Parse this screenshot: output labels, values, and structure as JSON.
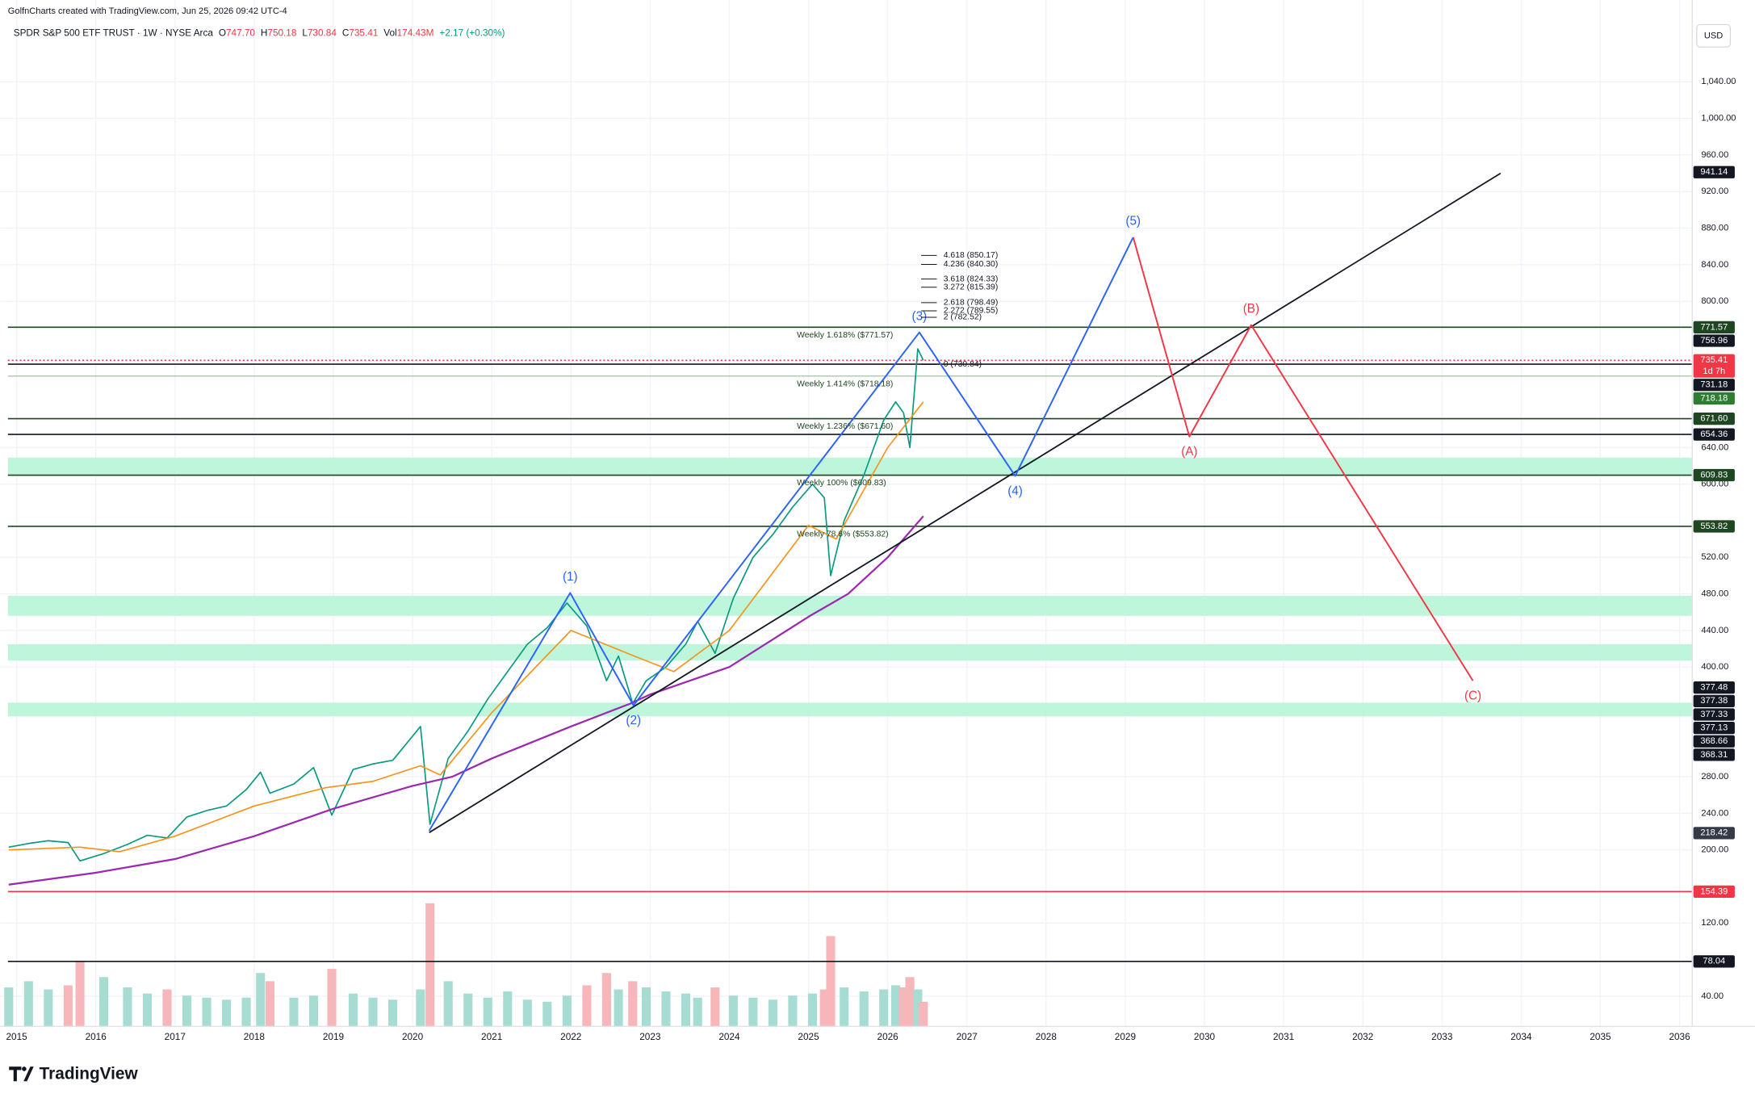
{
  "chart_data": {
    "type": "line",
    "caption": "GolfnCharts created with TradingView.com, Jun 25, 2026 09:42 UTC-4",
    "symbol": "SPDR S&P 500 ETF TRUST · 1W · NYSE Arca",
    "quote": [
      {
        "key": "O",
        "value": "747.70"
      },
      {
        "key": "H",
        "value": "750.18"
      },
      {
        "key": "L",
        "value": "730.84"
      },
      {
        "key": "C",
        "value": "735.41"
      },
      {
        "key": "Vol",
        "value": "174.43M"
      }
    ],
    "change": "+2.17 (+0.30%)",
    "currency": "USD",
    "watermark": "TradingView",
    "xlim": [
      2014.89,
      2036.16
    ],
    "xticks": [
      2015,
      2016,
      2017,
      2018,
      2019,
      2020,
      2021,
      2022,
      2023,
      2024,
      2025,
      2026,
      2027,
      2028,
      2029,
      2030,
      2031,
      2032,
      2033,
      2034,
      2035,
      2036
    ],
    "ylim": [
      7,
      1105
    ],
    "yticks": [
      {
        "value": 40,
        "label": "40.00"
      },
      {
        "value": 120,
        "label": "120.00"
      },
      {
        "value": 200,
        "label": "200.00"
      },
      {
        "value": 240,
        "label": "240.00"
      },
      {
        "value": 280,
        "label": "280.00"
      },
      {
        "value": 400,
        "label": "400.00"
      },
      {
        "value": 440,
        "label": "440.00"
      },
      {
        "value": 480,
        "label": "480.00"
      },
      {
        "value": 520,
        "label": "520.00"
      },
      {
        "value": 600,
        "label": "600.00"
      },
      {
        "value": 640,
        "label": "640.00"
      },
      {
        "value": 800,
        "label": "800.00"
      },
      {
        "value": 840,
        "label": "840.00"
      },
      {
        "value": 880,
        "label": "880.00"
      },
      {
        "value": 920,
        "label": "920.00"
      },
      {
        "value": 960,
        "label": "960.00"
      },
      {
        "value": 1000,
        "label": "1,000.00"
      },
      {
        "value": 1040,
        "label": "1,040.00"
      }
    ],
    "grid": true,
    "zones": [
      {
        "low": 609,
        "high": 629,
        "color": "#b7f5d8"
      },
      {
        "low": 456,
        "high": 478,
        "color": "#b7f5d8"
      },
      {
        "low": 407,
        "high": 425,
        "color": "#b7f5d8"
      },
      {
        "low": 346,
        "high": 361,
        "color": "#b7f5d8"
      }
    ],
    "series": [
      {
        "color": "#089981",
        "width": 1.2,
        "x": [
          2014.9,
          2015.15,
          2015.4,
          2015.65,
          2015.8,
          2016.1,
          2016.4,
          2016.65,
          2016.9,
          2017.15,
          2017.4,
          2017.65,
          2017.9,
          2018.08,
          2018.2,
          2018.5,
          2018.75,
          2018.98,
          2019.25,
          2019.5,
          2019.75,
          2020.1,
          2020.22,
          2020.45,
          2020.7,
          2020.95,
          2021.2,
          2021.45,
          2021.7,
          2021.95,
          2022.2,
          2022.45,
          2022.6,
          2022.78,
          2022.95,
          2023.2,
          2023.45,
          2023.6,
          2023.82,
          2024.05,
          2024.3,
          2024.55,
          2024.8,
          2025.05,
          2025.2,
          2025.28,
          2025.45,
          2025.7,
          2025.95,
          2026.1,
          2026.2,
          2026.28,
          2026.38,
          2026.45
        ],
        "values": [
          203,
          207,
          210,
          208,
          188,
          196,
          206,
          216,
          213,
          236,
          243,
          248,
          266,
          285,
          262,
          272,
          290,
          238,
          288,
          294,
          298,
          335,
          228,
          300,
          330,
          365,
          395,
          425,
          443,
          470,
          445,
          385,
          412,
          360,
          385,
          400,
          425,
          450,
          415,
          475,
          520,
          545,
          575,
          600,
          585,
          500,
          560,
          610,
          670,
          690,
          678,
          640,
          748,
          735.41
        ],
        "volume": [
          95,
          110,
          90,
          100,
          160,
          120,
          95,
          80,
          90,
          75,
          70,
          65,
          70,
          130,
          110,
          70,
          75,
          140,
          80,
          70,
          65,
          90,
          300,
          110,
          80,
          70,
          85,
          65,
          60,
          75,
          100,
          130,
          90,
          110,
          95,
          85,
          80,
          70,
          95,
          75,
          70,
          65,
          75,
          80,
          90,
          220,
          95,
          85,
          90,
          100,
          95,
          120,
          90,
          60
        ]
      },
      {
        "color": "#f7931a",
        "width": 1.2,
        "x": [
          2014.9,
          2015.8,
          2016.3,
          2017,
          2018,
          2018.9,
          2019.5,
          2020.1,
          2020.35,
          2021,
          2022,
          2022.8,
          2023.3,
          2024,
          2025,
          2025.35,
          2026,
          2026.45
        ],
        "values": [
          200,
          203,
          198,
          215,
          248,
          268,
          275,
          292,
          282,
          350,
          440,
          412,
          395,
          440,
          555,
          540,
          640,
          690
        ]
      },
      {
        "color": "#9c27b0",
        "width": 1.6,
        "x": [
          2014.9,
          2016,
          2017,
          2018,
          2019,
          2020,
          2020.5,
          2021,
          2022,
          2022.75,
          2023,
          2024,
          2025,
          2025.5,
          2026,
          2026.45
        ],
        "values": [
          162,
          175,
          190,
          215,
          245,
          270,
          280,
          300,
          335,
          360,
          370,
          400,
          455,
          480,
          520,
          565
        ]
      },
      {
        "color": "#131722",
        "width": 1.3,
        "x": [
          2020.21,
          2033.74
        ],
        "values": [
          219,
          940
        ]
      },
      {
        "color": "#2962ff",
        "width": 1.4,
        "x": [
          2020.21,
          2021.99,
          2022.79,
          2026.4,
          2027.61,
          2029.1
        ],
        "values": [
          221,
          481,
          358,
          766,
          609,
          870
        ],
        "labels": [
          null,
          "(1)",
          "(2)",
          "(3)",
          "(4)",
          "(5)"
        ]
      },
      {
        "color": "#f23645",
        "width": 1.4,
        "x": [
          2029.1,
          2029.81,
          2030.59,
          2033.39
        ],
        "values": [
          870,
          652,
          774,
          385
        ],
        "labels": [
          null,
          "(A)",
          "(B)",
          "(C)"
        ]
      }
    ],
    "fib_levels": [
      {
        "label": "4.618 (850.17)",
        "value": 850.17
      },
      {
        "label": "4.236 (840.30)",
        "value": 840.3
      },
      {
        "label": "3.618 (824.33)",
        "value": 824.33
      },
      {
        "label": "3.272 (815.39)",
        "value": 815.39
      },
      {
        "label": "2.618 (798.49)",
        "value": 798.49
      },
      {
        "label": "2.272 (789.55)",
        "value": 789.55
      },
      {
        "label": "2 (782.52)",
        "value": 782.52
      },
      {
        "label": "0 (730.84)",
        "value": 730.84
      }
    ],
    "weekly_levels": [
      {
        "label": "Weekly 1.618% ($771.57)",
        "value": 771.57
      },
      {
        "label": "Weekly 1.414% ($718.18)",
        "value": 718.18
      },
      {
        "label": "Weekly 1.236% ($671.60)",
        "value": 671.6
      },
      {
        "label": "Weekly 100% ($609.83)",
        "value": 609.83
      },
      {
        "label": "Weekly 78.6% ($553.82)",
        "value": 553.82
      }
    ],
    "price_labels": [
      {
        "value": 941.14,
        "label": "941.14",
        "color": "#131722"
      },
      {
        "value": 771.57,
        "label": "771.57",
        "color": "#1e4620",
        "line": "solid"
      },
      {
        "value": 756.96,
        "label": "756.96",
        "color": "#131722"
      },
      {
        "value": 735.41,
        "label": "735.41",
        "sub": "1d 7h",
        "color": "#f23645",
        "line": "dotted"
      },
      {
        "value": 731.18,
        "label": "731.18",
        "color": "#131722",
        "line": "solid"
      },
      {
        "value": 718.18,
        "label": "718.18",
        "color": "#2e7d32",
        "line": "light"
      },
      {
        "value": 671.6,
        "label": "671.60",
        "color": "#1e4620",
        "line": "solid"
      },
      {
        "value": 654.36,
        "label": "654.36",
        "color": "#131722",
        "line": "solid"
      },
      {
        "value": 609.83,
        "label": "609.83",
        "color": "#1e4620",
        "line": "solid"
      },
      {
        "value": 553.82,
        "label": "553.82",
        "color": "#1e4620",
        "line": "solid"
      },
      {
        "value": 377.48,
        "label": "377.48",
        "color": "#131722"
      },
      {
        "value": 377.38,
        "label": "377.38",
        "color": "#131722"
      },
      {
        "value": 377.33,
        "label": "377.33",
        "color": "#131722"
      },
      {
        "value": 377.13,
        "label": "377.13",
        "color": "#131722"
      },
      {
        "value": 368.66,
        "label": "368.66",
        "color": "#131722"
      },
      {
        "value": 368.31,
        "label": "368.31",
        "color": "#131722"
      },
      {
        "value": 218.42,
        "label": "218.42",
        "color": "#363a45"
      },
      {
        "value": 154.39,
        "label": "154.39",
        "color": "#f23645",
        "line": "solid"
      },
      {
        "value": 78.04,
        "label": "78.04",
        "color": "#131722",
        "line": "solid"
      }
    ]
  }
}
